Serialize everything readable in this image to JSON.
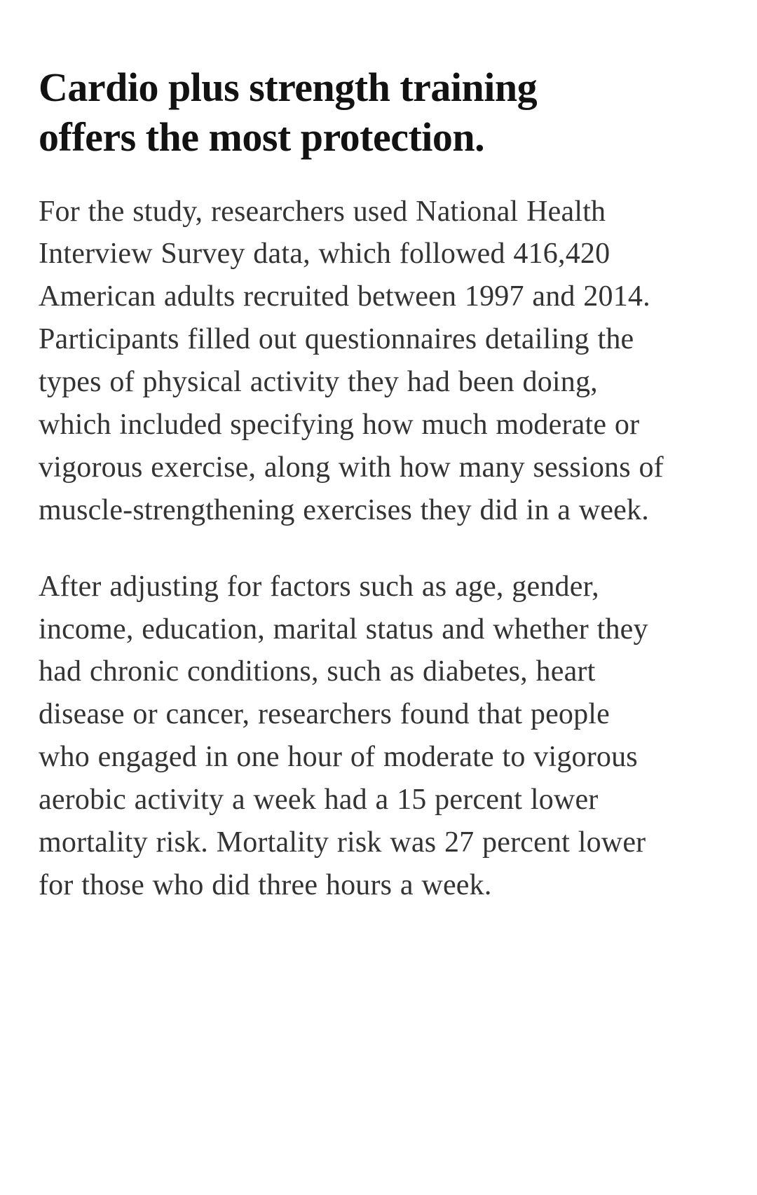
{
  "page": {
    "background_color": "#ffffff"
  },
  "article": {
    "heading": "Cardio plus strength training offers the most protection.",
    "paragraphs": [
      "For the study, researchers used National Health Interview Survey data, which followed 416,420 American adults recruited between 1997 and 2014. Participants filled out questionnaires detailing the types of physical activity they had been doing, which included specifying how much moderate or vigorous exercise, along with how many sessions of muscle-strengthening exercises they did in a week.",
      "After adjusting for factors such as age, gender, income, education, marital status and whether they had chronic conditions, such as diabetes, heart disease or cancer, researchers found that people who engaged in one hour of moderate to vigorous aerobic activity a week had a 15 percent lower mortality risk. Mortality risk was 27 percent lower for those who did three hours a week."
    ],
    "colors": {
      "heading_text": "#121212",
      "body_text": "#333333",
      "background": "#ffffff"
    }
  }
}
